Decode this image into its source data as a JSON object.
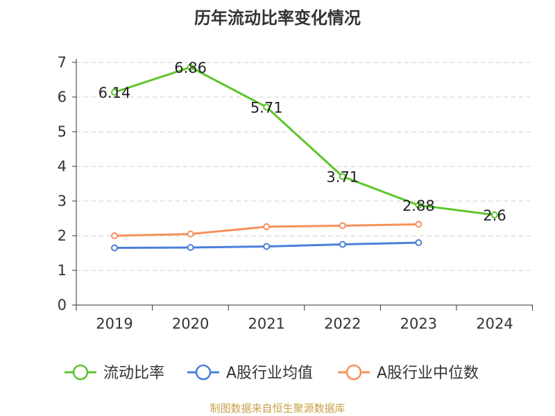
{
  "colors": {
    "current_ratio": "#5cc52a",
    "industry_avg": "#4a7fd8",
    "industry_median": "#f5905a",
    "grid": "#cccccc",
    "axis": "#333333",
    "source": "#c8a046"
  },
  "chart_data": {
    "type": "line",
    "title": "历年流动比率变化情况",
    "categories": [
      "2019",
      "2020",
      "2021",
      "2022",
      "2023",
      "2024"
    ],
    "ylim": [
      0,
      7
    ],
    "yticks": [
      "0",
      "1",
      "2",
      "3",
      "4",
      "5",
      "6",
      "7"
    ],
    "grid": true,
    "legend_position": "bottom",
    "series": [
      {
        "name": "流动比率",
        "values": [
          6.14,
          6.86,
          5.71,
          3.71,
          2.88,
          2.6
        ],
        "labels": [
          "6.14",
          "6.86",
          "5.71",
          "3.71",
          "2.88",
          "2.6"
        ]
      },
      {
        "name": "A股行业均值",
        "values": [
          1.65,
          1.66,
          1.69,
          1.75,
          1.8,
          null
        ]
      },
      {
        "name": "A股行业中位数",
        "values": [
          2.0,
          2.05,
          2.26,
          2.29,
          2.33,
          null
        ]
      }
    ]
  },
  "source_text": "制图数据来自恒生聚源数据库"
}
